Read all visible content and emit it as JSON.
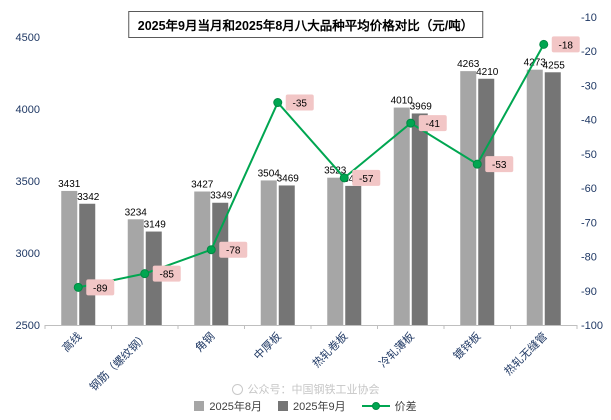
{
  "title": "2025年9月当月和2025年8月八大品种平均价格对比（元/吨）",
  "watermark": "公众号：中国钢铁工业协会",
  "colors": {
    "aug_bar": "#a6a6a6",
    "sep_bar": "#757575",
    "diff_line": "#00a651",
    "diff_marker_stroke": "#008a43",
    "diff_label_bg": "#f2c6c6",
    "axis_text": "#1f3864",
    "data_label": "#000000",
    "axis_line": "#bfbfbf"
  },
  "chart_data": {
    "type": "bar+line",
    "title": "2025年9月当月和2025年8月八大品种平均价格对比（元/吨）",
    "categories": [
      "高线",
      "钢筋（螺纹钢）",
      "角钢",
      "中厚板",
      "热轧卷板",
      "冷轧薄板",
      "镀锌板",
      "热轧无缝管"
    ],
    "series": [
      {
        "name": "2025年8月",
        "type": "bar",
        "axis": "left",
        "values": [
          3431,
          3234,
          3427,
          3504,
          3523,
          4010,
          4263,
          4273
        ]
      },
      {
        "name": "2025年9月",
        "type": "bar",
        "axis": "left",
        "values": [
          3342,
          3149,
          3349,
          3469,
          3466,
          3969,
          4210,
          4255
        ]
      },
      {
        "name": "价差",
        "type": "line",
        "axis": "right",
        "values": [
          -89,
          -85,
          -78,
          -35,
          -57,
          -41,
          -53,
          -18
        ]
      }
    ],
    "left_axis": {
      "min": 2500,
      "max": 4500,
      "ticks": [
        4500,
        4000,
        3500,
        3000,
        2500
      ]
    },
    "right_axis": {
      "min": -100,
      "max": -10,
      "ticks": [
        -10,
        -20,
        -30,
        -40,
        -50,
        -60,
        -70,
        -80,
        -90,
        -100
      ]
    },
    "legend_position": "bottom",
    "grid": false
  }
}
